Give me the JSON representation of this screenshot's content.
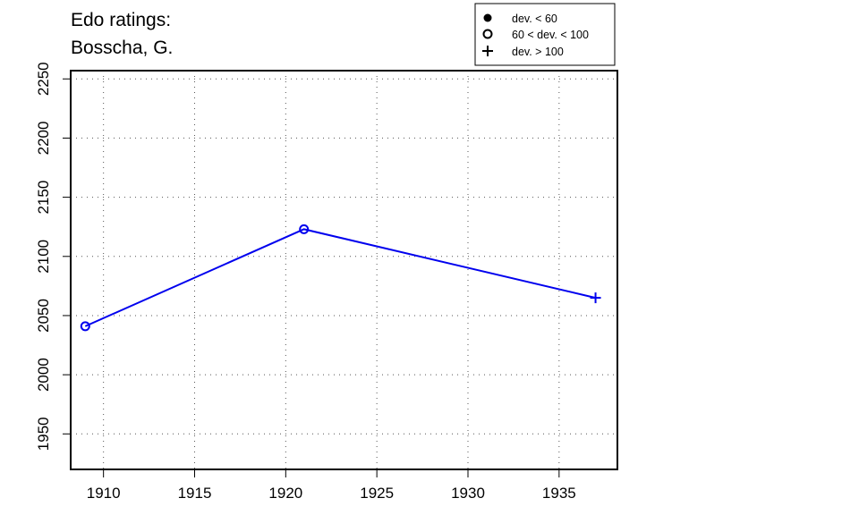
{
  "title_lines": [
    "Edo ratings:",
    "Bosscha, G."
  ],
  "legend": [
    {
      "marker": "filled-circle",
      "label": "dev. < 60"
    },
    {
      "marker": "open-circle",
      "label": "60 < dev. < 100"
    },
    {
      "marker": "plus",
      "label": "dev. > 100"
    }
  ],
  "chart_data": {
    "type": "line",
    "title": "Edo ratings: Bosscha, G.",
    "xlabel": "",
    "ylabel": "",
    "xlim": [
      1908.2,
      1938.2
    ],
    "ylim": [
      1920,
      2257
    ],
    "x_ticks": [
      1910,
      1915,
      1920,
      1925,
      1930,
      1935
    ],
    "y_ticks": [
      1950,
      2000,
      2050,
      2100,
      2150,
      2200,
      2250
    ],
    "grid": true,
    "legend_position": "top-right",
    "series": [
      {
        "color": "#0000ee",
        "points": [
          {
            "x": 1909,
            "y": 2041,
            "marker": "open-circle"
          },
          {
            "x": 1921,
            "y": 2123,
            "marker": "open-circle"
          },
          {
            "x": 1937,
            "y": 2065,
            "marker": "plus"
          }
        ]
      }
    ]
  }
}
